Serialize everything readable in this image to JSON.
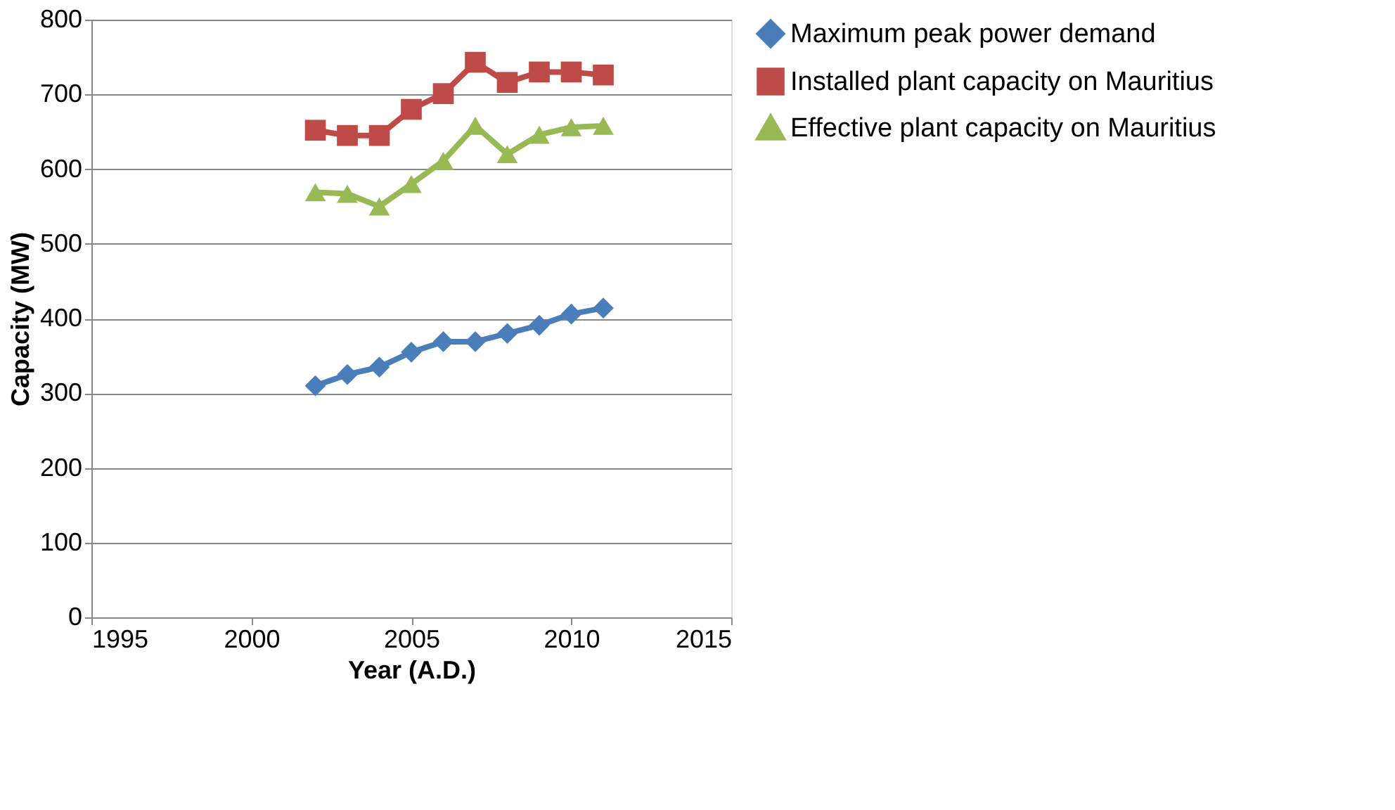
{
  "chart_data": {
    "type": "line",
    "xlabel": "Year (A.D.)",
    "ylabel": "Capacity (MW)",
    "x": [
      2002,
      2003,
      2004,
      2005,
      2006,
      2007,
      2008,
      2009,
      2010,
      2011
    ],
    "series": [
      {
        "name": "Maximum peak power demand",
        "color": "#4a7ebb",
        "marker": "diamond",
        "values": [
          310,
          325,
          335,
          355,
          369,
          369,
          380,
          391,
          406,
          414
        ]
      },
      {
        "name": "Installed plant capacity on Mauritius",
        "color": "#be4b48",
        "marker": "square",
        "values": [
          652,
          645,
          645,
          680,
          701,
          743,
          716,
          730,
          730,
          726
        ]
      },
      {
        "name": "Effective plant capacity on Mauritius",
        "color": "#98b954",
        "marker": "triangle",
        "values": [
          569,
          567,
          550,
          580,
          611,
          658,
          620,
          646,
          656,
          658
        ]
      }
    ],
    "xlim": [
      1995,
      2015
    ],
    "xticks": [
      1995,
      2000,
      2005,
      2010,
      2015
    ],
    "ylim": [
      0,
      800
    ],
    "yticks": [
      0,
      100,
      200,
      300,
      400,
      500,
      600,
      700,
      800
    ],
    "grid": "y",
    "legend": "right",
    "line_style": "solid"
  }
}
